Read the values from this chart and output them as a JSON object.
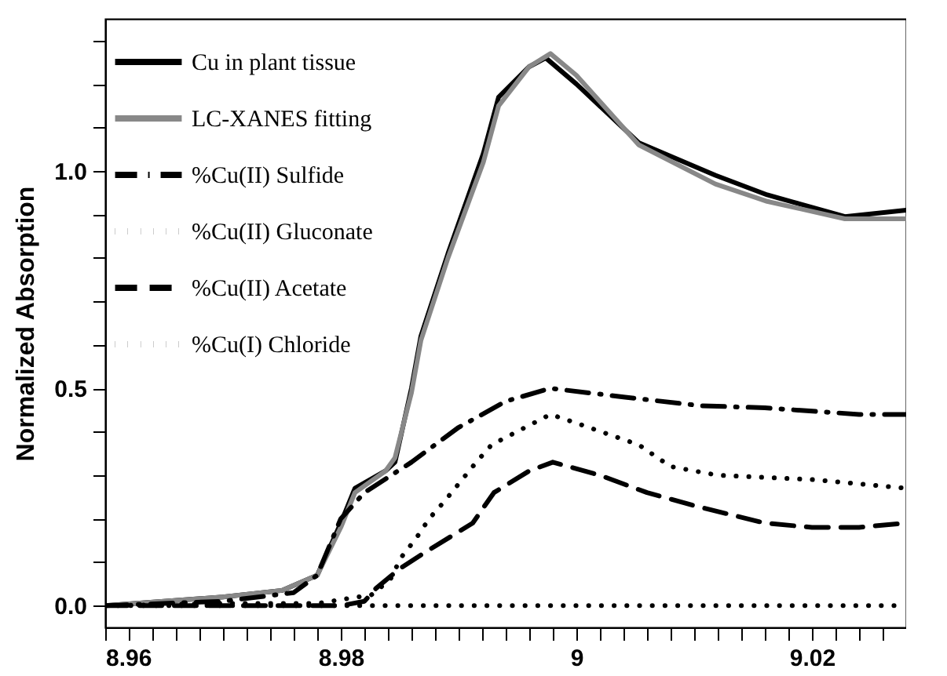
{
  "chart_data": {
    "type": "line",
    "ylabel": "Normalized Absorption",
    "xlim": [
      8.96,
      9.028
    ],
    "ylim": [
      -0.05,
      1.35
    ],
    "xticks": [
      8.96,
      {
        "value": 8.962,
        "label": null
      },
      {
        "value": 8.964,
        "label": null
      },
      {
        "value": 8.966,
        "label": null
      },
      {
        "value": 8.968,
        "label": null
      },
      {
        "value": 8.97,
        "label": null
      },
      {
        "value": 8.972,
        "label": null
      },
      {
        "value": 8.974,
        "label": null
      },
      {
        "value": 8.976,
        "label": null
      },
      {
        "value": 8.978,
        "label": null
      },
      8.98,
      {
        "value": 8.982,
        "label": null
      },
      {
        "value": 8.984,
        "label": null
      },
      {
        "value": 8.986,
        "label": null
      },
      {
        "value": 8.988,
        "label": null
      },
      {
        "value": 8.99,
        "label": null
      },
      {
        "value": 8.992,
        "label": null
      },
      {
        "value": 8.994,
        "label": null
      },
      {
        "value": 8.996,
        "label": null
      },
      {
        "value": 8.998,
        "label": null
      },
      9,
      {
        "value": 9.002,
        "label": null
      },
      {
        "value": 9.004,
        "label": null
      },
      {
        "value": 9.006,
        "label": null
      },
      {
        "value": 9.008,
        "label": null
      },
      {
        "value": 9.01,
        "label": null
      },
      {
        "value": 9.012,
        "label": null
      },
      {
        "value": 9.014,
        "label": null
      },
      {
        "value": 9.016,
        "label": null
      },
      {
        "value": 9.018,
        "label": null
      },
      9.02,
      {
        "value": 9.022,
        "label": null
      },
      {
        "value": 9.024,
        "label": null
      },
      {
        "value": 9.026,
        "label": null
      }
    ],
    "yticks": [
      {
        "value": 0,
        "label": "0.0"
      },
      {
        "value": 0.1,
        "label": null
      },
      {
        "value": 0.2,
        "label": null
      },
      {
        "value": 0.3,
        "label": null
      },
      {
        "value": 0.4,
        "label": null
      },
      {
        "value": 0.5,
        "label": "0.5"
      },
      {
        "value": 0.6,
        "label": null
      },
      {
        "value": 0.7,
        "label": null
      },
      {
        "value": 0.8,
        "label": null
      },
      {
        "value": 0.9,
        "label": null
      },
      {
        "value": 1,
        "label": "1.0"
      },
      {
        "value": 1.1,
        "label": null
      },
      {
        "value": 1.2,
        "label": null
      },
      {
        "value": 1.3,
        "label": null
      }
    ],
    "grid": false,
    "legend": "top left",
    "series": [
      {
        "name": "Cu in plant tissue",
        "color": "#000000",
        "line_style": "solid",
        "x": [
          8.96,
          8.965,
          8.97,
          8.975,
          8.978,
          8.98,
          8.9812,
          8.9838,
          8.9846,
          8.986,
          8.9868,
          8.9891,
          8.9921,
          8.9934,
          8.996,
          8.9974,
          9.0,
          9.0053,
          9.0118,
          9.0162,
          9.0228,
          9.028
        ],
        "values": [
          0.0,
          0.01,
          0.02,
          0.035,
          0.07,
          0.19,
          0.27,
          0.31,
          0.33,
          0.5,
          0.62,
          0.81,
          1.04,
          1.17,
          1.24,
          1.26,
          1.2,
          1.065,
          0.99,
          0.945,
          0.895,
          0.91
        ]
      },
      {
        "name": "LC-XANES fitting",
        "color": "#888888",
        "line_style": "solid",
        "x": [
          8.96,
          8.965,
          8.97,
          8.975,
          8.978,
          8.98,
          8.9812,
          8.9838,
          8.9846,
          8.986,
          8.9868,
          8.9891,
          8.9921,
          8.9934,
          8.996,
          8.9978,
          9.0,
          9.0053,
          9.0118,
          9.0162,
          9.0228,
          9.028
        ],
        "values": [
          0.0,
          0.01,
          0.02,
          0.035,
          0.07,
          0.18,
          0.26,
          0.31,
          0.34,
          0.49,
          0.61,
          0.8,
          1.02,
          1.15,
          1.24,
          1.27,
          1.22,
          1.06,
          0.97,
          0.93,
          0.89,
          0.89
        ]
      },
      {
        "name": "%Cu(II) Sulfide",
        "color": "#000000",
        "line_style": "dashdot",
        "x": [
          8.96,
          8.97,
          8.976,
          8.978,
          8.98,
          8.982,
          8.986,
          8.99,
          8.994,
          8.9978,
          9.004,
          9.0105,
          9.016,
          9.024,
          9.028
        ],
        "values": [
          0.0,
          0.01,
          0.03,
          0.07,
          0.2,
          0.26,
          0.33,
          0.41,
          0.47,
          0.5,
          0.48,
          0.46,
          0.455,
          0.44,
          0.44
        ]
      },
      {
        "name": "%Cu(II) Gluconate",
        "color": "#000000",
        "line_style": "dotted",
        "x": [
          8.96,
          8.97,
          8.978,
          8.9826,
          8.9842,
          8.9851,
          8.9864,
          8.9875,
          8.9888,
          8.99,
          8.9915,
          8.9928,
          8.9978,
          9.0,
          9.0053,
          9.008,
          9.012,
          9.016,
          9.02,
          9.024,
          9.028
        ],
        "values": [
          0.0,
          0.005,
          0.005,
          0.025,
          0.06,
          0.11,
          0.155,
          0.2,
          0.24,
          0.28,
          0.33,
          0.37,
          0.44,
          0.42,
          0.37,
          0.32,
          0.3,
          0.295,
          0.29,
          0.28,
          0.27
        ]
      },
      {
        "name": "%Cu(II) Acetate",
        "color": "#000000",
        "line_style": "dashed",
        "x": [
          8.96,
          8.97,
          8.98,
          8.982,
          8.983,
          8.985,
          8.987,
          8.9912,
          8.993,
          8.996,
          8.998,
          9.002,
          9.006,
          9.01,
          9.016,
          9.02,
          9.024,
          9.028
        ],
        "values": [
          0.0,
          0.0,
          0.0,
          0.01,
          0.04,
          0.085,
          0.12,
          0.19,
          0.26,
          0.31,
          0.33,
          0.3,
          0.26,
          0.23,
          0.19,
          0.18,
          0.18,
          0.19
        ]
      },
      {
        "name": "%Cu(I) Chloride",
        "color": "#000000",
        "line_style": "dotted",
        "x": [
          8.96,
          9.028
        ],
        "values": [
          0.0,
          0.0
        ]
      }
    ]
  }
}
